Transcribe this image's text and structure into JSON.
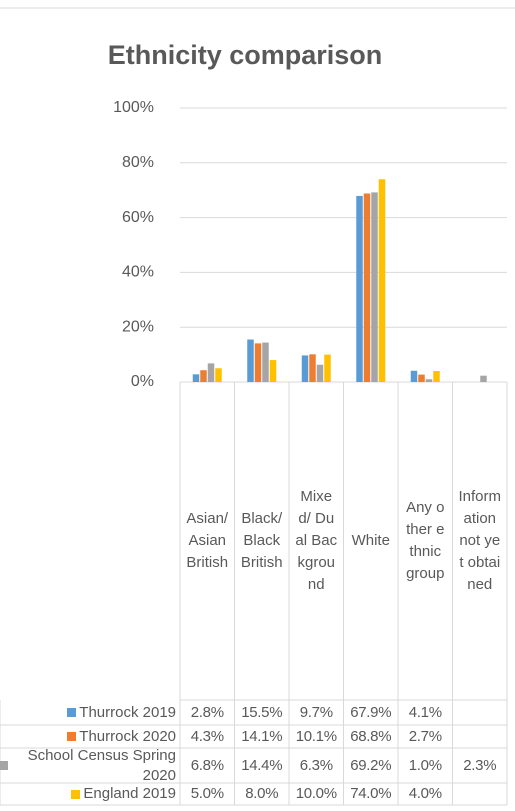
{
  "chart_data": {
    "type": "bar",
    "title": "Ethnicity comparison",
    "categories": [
      "Asian/ Asian British",
      "Black/ Black British",
      "Mixed/ Dual Background",
      "White",
      "Any other ethnic group",
      "Information not yet obtained"
    ],
    "series": [
      {
        "name": "Thurrock 2019",
        "color": "#5b9bd5",
        "values": [
          2.8,
          15.5,
          9.7,
          67.9,
          4.1,
          null
        ],
        "value_labels": [
          "2.8%",
          "15.5%",
          "9.7%",
          "67.9%",
          "4.1%",
          null
        ]
      },
      {
        "name": "Thurrock 2020",
        "color": "#ed7d31",
        "values": [
          4.3,
          14.1,
          10.1,
          68.8,
          2.7,
          null
        ],
        "value_labels": [
          "4.3%",
          "14.1%",
          "10.1%",
          "68.8%",
          "2.7%",
          null
        ]
      },
      {
        "name": "School Census Spring 2020",
        "color": "#a5a5a5",
        "values": [
          6.8,
          14.4,
          6.3,
          69.2,
          1.0,
          2.3
        ],
        "value_labels": [
          "6.8%",
          "14.4%",
          "6.3%",
          "69.2%",
          "1.0%",
          "2.3%"
        ]
      },
      {
        "name": "England 2019",
        "color": "#ffc000",
        "values": [
          5.0,
          8.0,
          10.0,
          74.0,
          4.0,
          null
        ],
        "value_labels": [
          "5.0%",
          "8.0%",
          "10.0%",
          "74.0%",
          "4.0%",
          null
        ]
      }
    ],
    "ylim": [
      0,
      100
    ],
    "yticks": [
      {
        "value": 0,
        "label": "0%"
      },
      {
        "value": 20,
        "label": "20%"
      },
      {
        "value": 40,
        "label": "40%"
      },
      {
        "value": 60,
        "label": "60%"
      },
      {
        "value": 80,
        "label": "80%"
      },
      {
        "value": 100,
        "label": "100%"
      }
    ],
    "grid": true
  }
}
